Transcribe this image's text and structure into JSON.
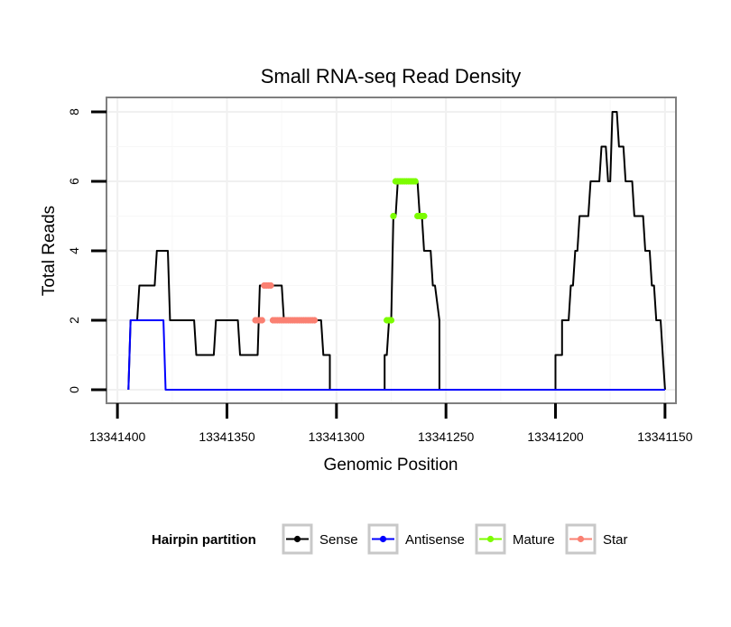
{
  "chart_data": {
    "type": "line",
    "title": "Small RNA-seq Read Density",
    "xlabel": "Genomic Position",
    "ylabel": "Total Reads",
    "xlim": [
      13341405,
      13341145
    ],
    "ylim": [
      0,
      8
    ],
    "x_reversed": true,
    "x_ticks": [
      13341400,
      13341350,
      13341300,
      13341250,
      13341200,
      13341150
    ],
    "x_tick_labels": [
      "13341400",
      "13341350",
      "13341300",
      "13341250",
      "13341200",
      "13341150"
    ],
    "y_ticks": [
      0,
      2,
      4,
      6,
      8
    ],
    "y_tick_labels": [
      "0",
      "2",
      "4",
      "6",
      "8"
    ],
    "grid": true,
    "legend": {
      "title": "Hairpin partition",
      "position": "bottom",
      "entries": [
        {
          "name": "Sense",
          "color": "#000000"
        },
        {
          "name": "Antisense",
          "color": "#0000ff"
        },
        {
          "name": "Mature",
          "color": "#7cfc00"
        },
        {
          "name": "Star",
          "color": "#fa8072"
        }
      ]
    },
    "series": [
      {
        "name": "Sense",
        "color": "#000000",
        "marker": false,
        "x": [
          13341395,
          13341394,
          13341391,
          13341390,
          13341383,
          13341382,
          13341377,
          13341376,
          13341365,
          13341364,
          13341356,
          13341355,
          13341345,
          13341344,
          13341336,
          13341335,
          13341325,
          13341324,
          13341323,
          13341322,
          13341320,
          13341319,
          13341318,
          13341317,
          13341313,
          13341312,
          13341309,
          13341308,
          13341307,
          13341306,
          13341303,
          13341303,
          13341278,
          13341278,
          13341277,
          13341276,
          13341275,
          13341274,
          13341273,
          13341272,
          13341263,
          13341262,
          13341261,
          13341260,
          13341257,
          13341256,
          13341255,
          13341253,
          13341253,
          13341200,
          13341200,
          13341197,
          13341197,
          13341194,
          13341193,
          13341192,
          13341191,
          13341190,
          13341189,
          13341185,
          13341184,
          13341180,
          13341179,
          13341177,
          13341176,
          13341175,
          13341174,
          13341172,
          13341171,
          13341169,
          13341168,
          13341165,
          13341164,
          13341160,
          13341159,
          13341157,
          13341156,
          13341155,
          13341154,
          13341152,
          13341151,
          13341150
        ],
        "y": [
          0,
          2,
          2,
          3,
          3,
          4,
          4,
          2,
          2,
          1,
          1,
          2,
          2,
          1,
          1,
          3,
          3,
          2,
          2,
          2,
          2,
          2,
          2,
          2,
          2,
          2,
          2,
          2,
          2,
          1,
          1,
          0,
          0,
          1,
          1,
          2,
          2,
          5,
          5,
          6,
          6,
          5,
          5,
          4,
          4,
          3,
          3,
          2,
          0,
          0,
          1,
          1,
          2,
          2,
          3,
          3,
          4,
          4,
          5,
          5,
          6,
          6,
          7,
          7,
          6,
          6,
          8,
          8,
          7,
          7,
          6,
          6,
          5,
          5,
          4,
          4,
          3,
          3,
          2,
          2,
          1,
          0
        ]
      },
      {
        "name": "Antisense",
        "color": "#0000ff",
        "marker": false,
        "x": [
          13341395,
          13341394,
          13341379,
          13341378,
          13341150
        ],
        "y": [
          0,
          2,
          2,
          0,
          0
        ]
      },
      {
        "name": "Mature",
        "color": "#7cfc00",
        "marker": true,
        "x": [
          13341277,
          13341276,
          13341275,
          13341274,
          13341273,
          13341272,
          13341271,
          13341270,
          13341269,
          13341268,
          13341267,
          13341266,
          13341265,
          13341264,
          13341263,
          13341262,
          13341261,
          13341260
        ],
        "y": [
          2,
          2,
          2,
          5,
          6,
          6,
          6,
          6,
          6,
          6,
          6,
          6,
          6,
          6,
          5,
          5,
          5,
          5
        ]
      },
      {
        "name": "Star",
        "color": "#fa8072",
        "marker": true,
        "x": [
          13341337,
          13341336,
          13341335,
          13341334,
          13341333,
          13341332,
          13341331,
          13341330,
          13341329,
          13341328,
          13341327,
          13341326,
          13341325,
          13341324,
          13341323,
          13341322,
          13341321,
          13341320,
          13341319,
          13341318,
          13341317,
          13341316,
          13341315,
          13341314,
          13341313,
          13341312,
          13341311,
          13341310
        ],
        "y": [
          2,
          2,
          2,
          2,
          3,
          3,
          3,
          3,
          2,
          2,
          2,
          2,
          2,
          2,
          2,
          2,
          2,
          2,
          2,
          2,
          2,
          2,
          2,
          2,
          2,
          2,
          2,
          2
        ]
      }
    ]
  }
}
